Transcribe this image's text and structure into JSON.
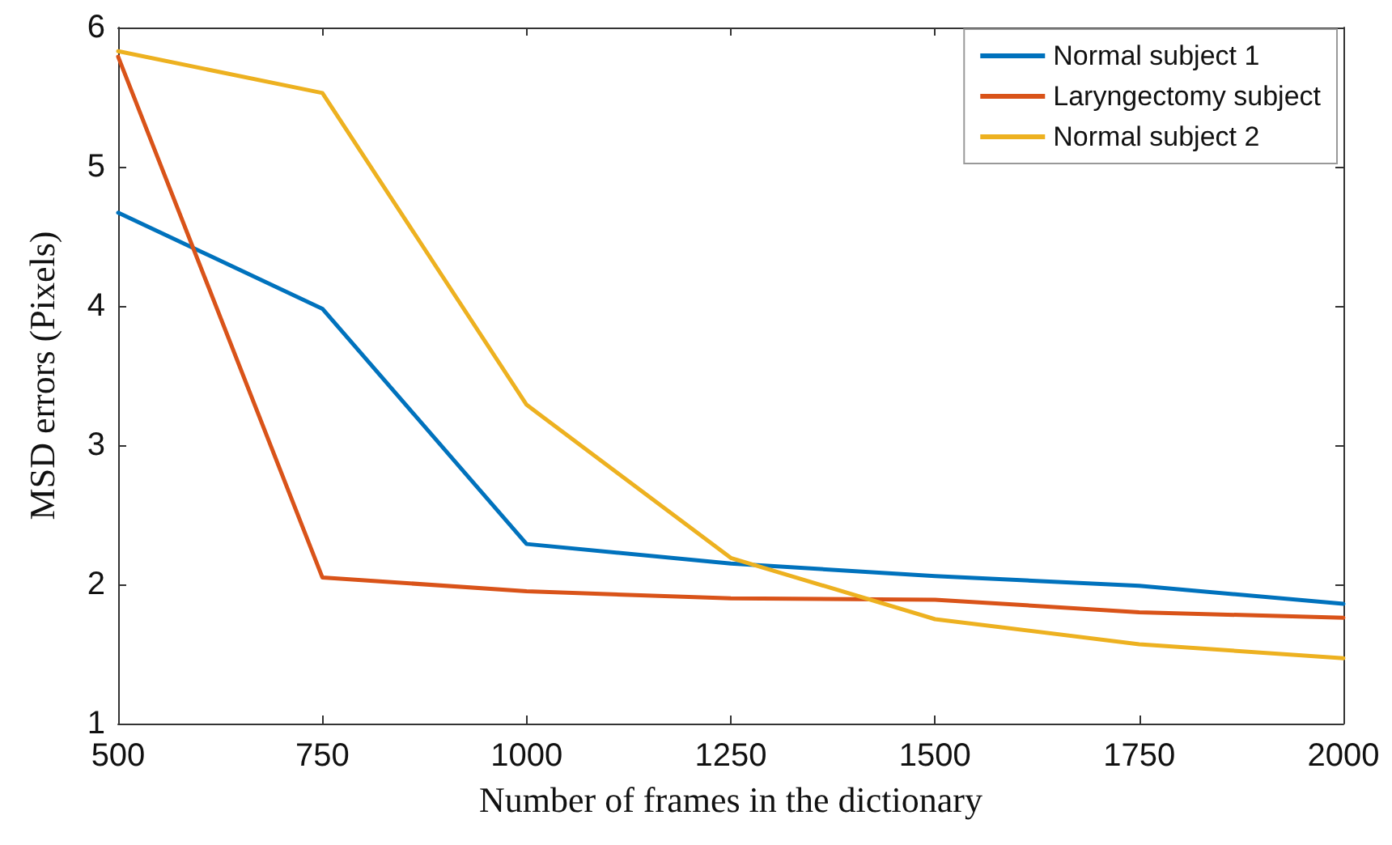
{
  "chart_data": {
    "type": "line",
    "xlabel": "Number of frames in the dictionary",
    "ylabel": "MSD errors (Pixels)",
    "x": [
      500,
      750,
      1000,
      1250,
      1500,
      1750,
      2000
    ],
    "series": [
      {
        "name": "Normal subject 1",
        "color": "#0072bd",
        "values": [
          4.67,
          3.98,
          2.29,
          2.15,
          2.06,
          1.99,
          1.86
        ]
      },
      {
        "name": "Laryngectomy subject",
        "color": "#d95319",
        "values": [
          5.79,
          2.05,
          1.95,
          1.9,
          1.89,
          1.8,
          1.76
        ]
      },
      {
        "name": "Normal subject 2",
        "color": "#edb120",
        "values": [
          5.83,
          5.53,
          3.29,
          2.19,
          1.75,
          1.57,
          1.47
        ]
      }
    ],
    "xlim": [
      500,
      2000
    ],
    "xticks": [
      500,
      750,
      1000,
      1250,
      1500,
      1750,
      2000
    ],
    "ylim": [
      1,
      6
    ],
    "yticks": [
      1,
      2,
      3,
      4,
      5,
      6
    ],
    "grid": false,
    "legend": "top right",
    "marker": "none",
    "line_style": "solid"
  }
}
